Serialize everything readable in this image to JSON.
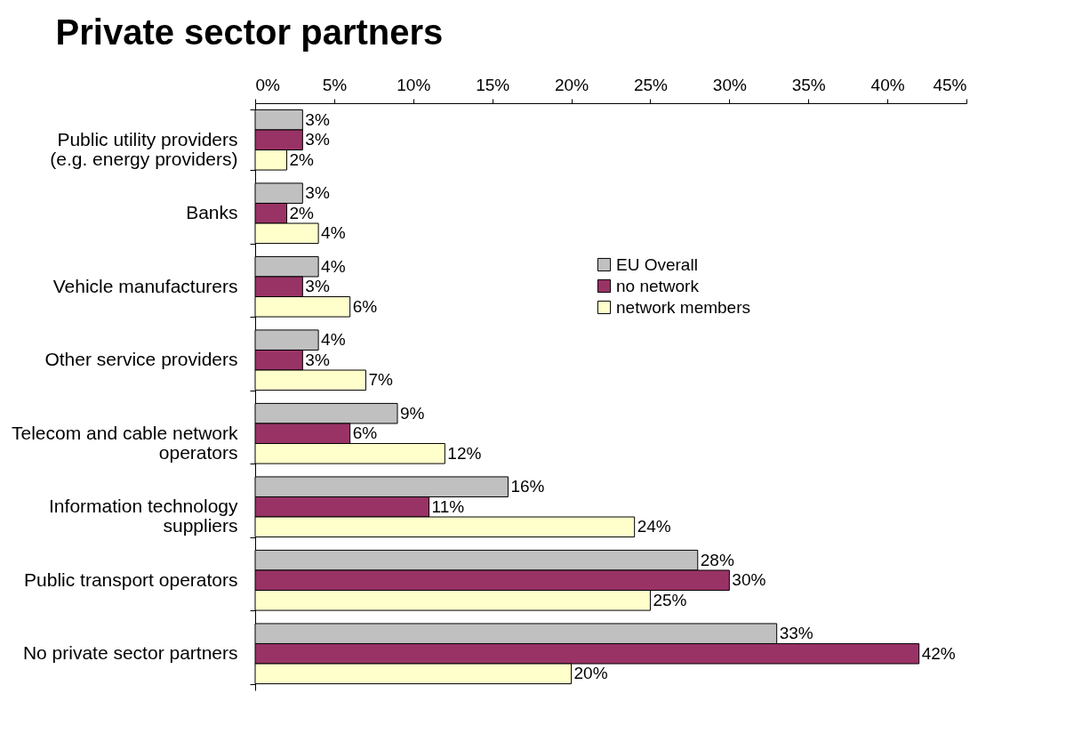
{
  "chart_data": {
    "type": "bar",
    "orientation": "horizontal",
    "title": "Private sector partners",
    "categories": [
      "Public utility providers\n(e.g. energy providers)",
      "Banks",
      "Vehicle manufacturers",
      "Other service providers",
      "Telecom and cable network\noperators",
      "Information technology\nsuppliers",
      "Public transport operators",
      "No private sector partners"
    ],
    "series": [
      {
        "name": "EU Overall",
        "color": "#c0c0c0",
        "values": [
          3,
          3,
          4,
          4,
          9,
          16,
          28,
          33
        ],
        "value_labels": [
          "3%",
          "3%",
          "4%",
          "4%",
          "9%",
          "16%",
          "28%",
          "33%"
        ]
      },
      {
        "name": "no network",
        "color": "#993366",
        "values": [
          3,
          2,
          3,
          3,
          6,
          11,
          30,
          42
        ],
        "value_labels": [
          "3%",
          "2%",
          "3%",
          "3%",
          "6%",
          "11%",
          "30%",
          "42%"
        ]
      },
      {
        "name": "network members",
        "color": "#ffffcc",
        "values": [
          2,
          4,
          6,
          7,
          12,
          24,
          25,
          20
        ],
        "value_labels": [
          "2%",
          "4%",
          "6%",
          "7%",
          "12%",
          "24%",
          "25%",
          "20%"
        ]
      }
    ],
    "xlim": [
      0,
      45
    ],
    "xticks": [
      {
        "value": 0,
        "label": "0%"
      },
      {
        "value": 5,
        "label": "5%"
      },
      {
        "value": 10,
        "label": "10%"
      },
      {
        "value": 15,
        "label": "15%"
      },
      {
        "value": 20,
        "label": "20%"
      },
      {
        "value": 25,
        "label": "25%"
      },
      {
        "value": 30,
        "label": "30%"
      },
      {
        "value": 35,
        "label": "35%"
      },
      {
        "value": 40,
        "label": "40%"
      },
      {
        "value": 45,
        "label": "45%"
      }
    ],
    "legend": "right"
  }
}
